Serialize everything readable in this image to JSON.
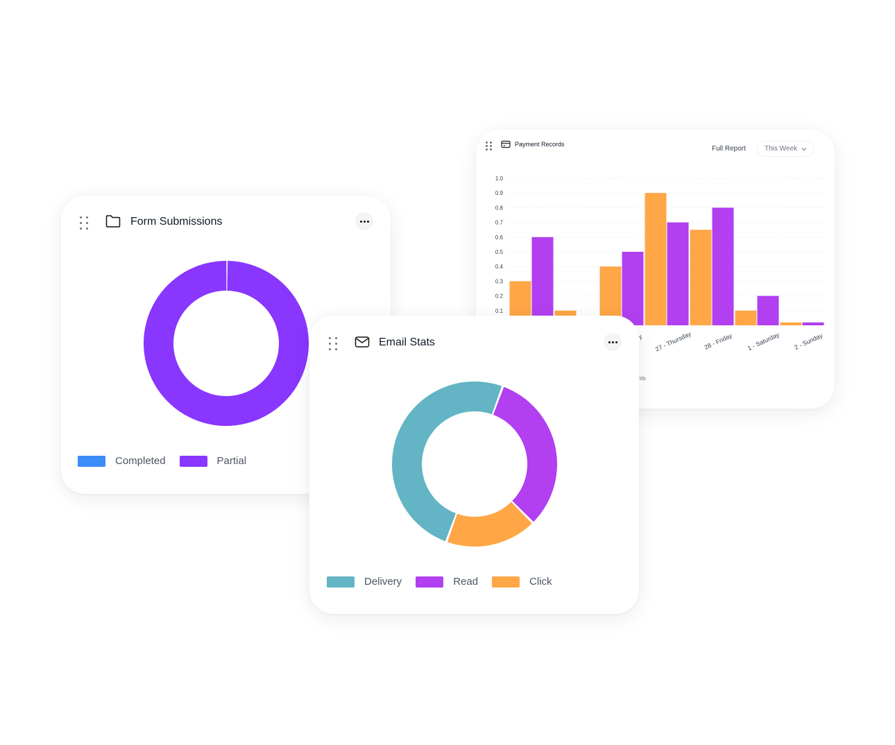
{
  "payment_card": {
    "title": "Payment Records",
    "full_report_label": "Full Report",
    "period_select": "This Week",
    "truncated_axis_label": "nts",
    "truncated_tick": "y"
  },
  "form_card": {
    "title": "Form Submissions",
    "legend": [
      {
        "label": "Completed",
        "color": "#3b8cf7"
      },
      {
        "label": "Partial",
        "color": "#8936ff"
      }
    ]
  },
  "email_card": {
    "title": "Email Stats",
    "legend": [
      {
        "label": "Delivery",
        "color": "#63b4c4"
      },
      {
        "label": "Read",
        "color": "#b23ff0"
      },
      {
        "label": "Click",
        "color": "#ffa646"
      }
    ]
  },
  "chart_data": [
    {
      "type": "pie",
      "labels": [
        "Completed",
        "Partial"
      ],
      "values": [
        0,
        100
      ],
      "colors": [
        "#3b8cf7",
        "#8936ff"
      ]
    },
    {
      "type": "pie",
      "labels": [
        "Delivery",
        "Read",
        "Click"
      ],
      "values": [
        50,
        32,
        18
      ],
      "colors": [
        "#63b4c4",
        "#b23ff0",
        "#ffa646"
      ]
    },
    {
      "type": "bar",
      "categories": [
        "",
        "",
        "",
        "27 - Thursday",
        "28 - Friday",
        "1 - Saturday",
        "2 - Sunday"
      ],
      "series": [
        {
          "values": [
            0.3,
            0.1,
            0.4,
            0.9,
            0.65,
            0.1,
            0.02
          ],
          "color": "#ffa646"
        },
        {
          "values": [
            0.6,
            0,
            0.5,
            0.7,
            0.8,
            0.2,
            0.02
          ],
          "color": "#b23ff0"
        }
      ],
      "yticks": [
        "0.1",
        "0.2",
        "0.3",
        "0.4",
        "0.5",
        "0.6",
        "0.7",
        "0.8",
        "0.9",
        "1.0"
      ],
      "ylim": [
        0,
        1.0
      ],
      "grid": true
    }
  ]
}
